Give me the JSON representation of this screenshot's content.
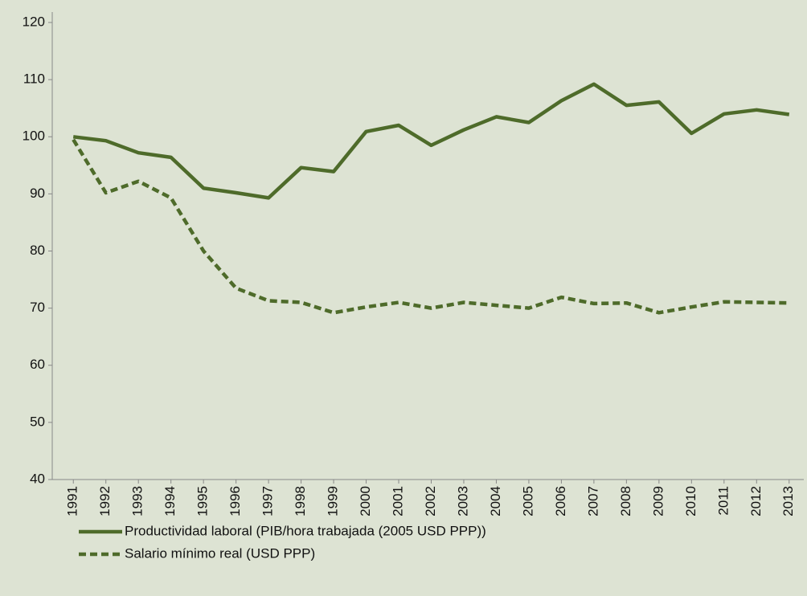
{
  "chart_data": {
    "type": "line",
    "categories": [
      "1991",
      "1992",
      "1993",
      "1994",
      "1995",
      "1996",
      "1997",
      "1998",
      "1999",
      "2000",
      "2001",
      "2002",
      "2003",
      "2004",
      "2005",
      "2006",
      "2007",
      "2008",
      "2009",
      "2010",
      "2011",
      "2012",
      "2013"
    ],
    "series": [
      {
        "name": "Productividad laboral (PIB/hora trabajada (2005 USD PPP))",
        "color": "#4e6b2a",
        "dash": false,
        "values": [
          100,
          99.3,
          97.2,
          96.4,
          91,
          90.2,
          89.3,
          94.6,
          93.9,
          100.9,
          102,
          98.5,
          101.2,
          103.5,
          102.5,
          106.3,
          109.2,
          105.5,
          106.1,
          100.6,
          104,
          104.7,
          103.9
        ]
      },
      {
        "name": "Salario mínimo real (USD PPP)",
        "color": "#4e6b2a",
        "dash": true,
        "values": [
          99.5,
          90.2,
          92.2,
          89.3,
          80,
          73.5,
          71.3,
          71,
          69.2,
          70.2,
          71,
          70,
          71,
          70.5,
          70,
          71.9,
          70.8,
          70.9,
          69.2,
          70.2,
          71.1,
          71,
          70.9
        ]
      }
    ],
    "ylim": [
      40,
      120
    ],
    "yticks": [
      40,
      50,
      60,
      70,
      80,
      90,
      100,
      110,
      120
    ],
    "legend": "bottom"
  }
}
